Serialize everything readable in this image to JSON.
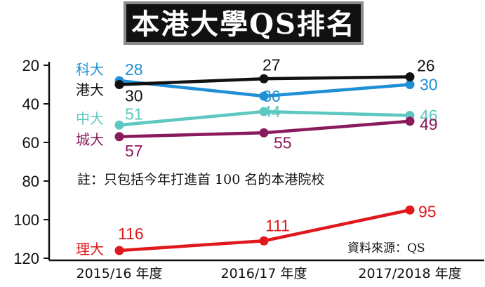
{
  "chart_data": {
    "type": "line",
    "title": "本港大學QS排名",
    "categories": [
      "2015/16 年度",
      "2016/17 年度",
      "2017/2018 年度"
    ],
    "y_ticks": [
      "20",
      "40",
      "60",
      "80",
      "100",
      "120"
    ],
    "ylim": [
      20,
      120
    ],
    "y_inverted": true,
    "grid": false,
    "series": [
      {
        "name": "科大",
        "values": [
          28,
          36,
          30
        ],
        "color": "#1f8fd6"
      },
      {
        "name": "港大",
        "values": [
          30,
          27,
          26
        ],
        "color": "#111111"
      },
      {
        "name": "中大",
        "values": [
          51,
          44,
          46
        ],
        "color": "#5cc8c0"
      },
      {
        "name": "城大",
        "values": [
          57,
          55,
          49
        ],
        "color": "#8b1a5c"
      },
      {
        "name": "理大",
        "values": [
          116,
          111,
          95
        ],
        "color": "#e0181b"
      }
    ],
    "note": "註：只包括今年打進首 100 名的本港院校",
    "source": "資料來源：QS"
  },
  "colors": {
    "title_bg": "#111111",
    "title_border": "#8a8a8a",
    "axis": "#111111"
  }
}
